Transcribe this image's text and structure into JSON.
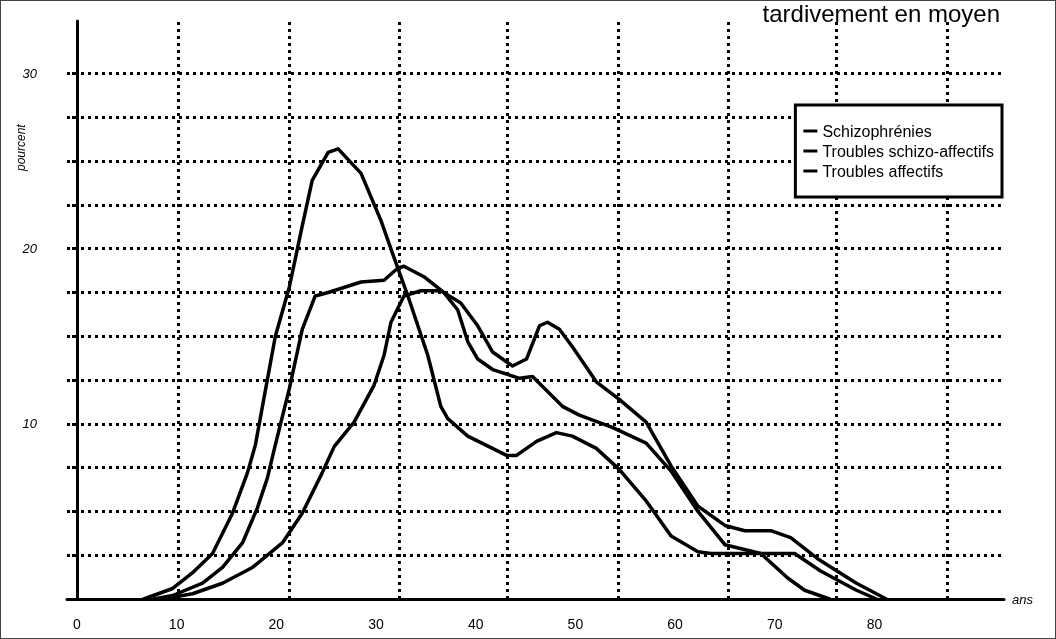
{
  "chart_data": {
    "type": "line",
    "xlabel": "ans",
    "ylabel": "pourcent",
    "annotations": [
      "tardivement en moyen"
    ],
    "xlim": [
      -1,
      93
    ],
    "xticks": [
      0,
      10,
      20,
      30,
      40,
      50,
      60,
      70,
      80
    ],
    "ylim": [
      0,
      33
    ],
    "yticks": [
      {
        "value": 2.5,
        "label": null
      },
      {
        "value": 5,
        "label": null
      },
      {
        "value": 7.5,
        "label": null
      },
      {
        "value": 10,
        "label": "10"
      },
      {
        "value": 12.5,
        "label": null
      },
      {
        "value": 15,
        "label": null
      },
      {
        "value": 17.5,
        "label": null
      },
      {
        "value": 20,
        "label": "20"
      },
      {
        "value": 22.5,
        "label": null
      },
      {
        "value": 25,
        "label": null
      },
      {
        "value": 27.5,
        "label": null
      },
      {
        "value": 30,
        "label": "30"
      }
    ],
    "grid": "y",
    "legend": "top right",
    "marker": "none",
    "line_style": "solid",
    "ref_lines": [
      {
        "axis": "x",
        "value": 10.2,
        "line_style": "dotted"
      },
      {
        "axis": "x",
        "value": 21.3,
        "line_style": "dotted"
      },
      {
        "axis": "x",
        "value": 32.3,
        "line_style": "dotted"
      },
      {
        "axis": "x",
        "value": 43.2,
        "line_style": "dotted"
      },
      {
        "axis": "x",
        "value": 54.3,
        "line_style": "dotted"
      },
      {
        "axis": "x",
        "value": 65.3,
        "line_style": "dotted"
      },
      {
        "axis": "x",
        "value": 76.2,
        "line_style": "dotted"
      },
      {
        "axis": "x",
        "value": 87.3,
        "line_style": "dotted"
      }
    ],
    "series": [
      {
        "name": "Schizophrénies",
        "color": "#000000",
        "x": [
          6.7,
          9.6,
          11.6,
          13.6,
          15.6,
          17.1,
          17.9,
          19.9,
          21.3,
          22.6,
          23.6,
          25.2,
          26.2,
          28.5,
          30.5,
          31.8,
          33.2,
          35.2,
          36.5,
          37.2,
          39.2,
          43.1,
          44.1,
          46.1,
          48.1,
          49.7,
          52.1,
          54.4,
          57.1,
          59.6,
          62.3,
          63.6,
          68.6,
          71.3,
          73.0,
          75.5
        ],
        "values": [
          0,
          0.6,
          1.5,
          2.6,
          4.9,
          7.2,
          8.8,
          15.0,
          17.8,
          21.3,
          23.9,
          25.5,
          25.7,
          24.3,
          21.6,
          19.5,
          17.3,
          13.9,
          11.0,
          10.3,
          9.3,
          8.2,
          8.2,
          9.0,
          9.5,
          9.3,
          8.6,
          7.4,
          5.6,
          3.6,
          2.7,
          2.6,
          2.6,
          1.2,
          0.5,
          0
        ]
      },
      {
        "name": "Troubles schizo-affectifs",
        "color": "#000000",
        "x": [
          7.7,
          9.6,
          12.6,
          14.6,
          16.6,
          18.1,
          19.1,
          19.9,
          21.3,
          22.6,
          23.9,
          25.2,
          28.5,
          30.8,
          32.2,
          32.8,
          34.8,
          36.8,
          38.2,
          39.2,
          40.2,
          41.7,
          44.4,
          45.7,
          48.7,
          50.4,
          53.7,
          57.1,
          59.6,
          62.3,
          65.0,
          68.6,
          72.0,
          74.6,
          78.2,
          80.2
        ],
        "values": [
          0,
          0.2,
          0.9,
          1.8,
          3.2,
          5.2,
          6.9,
          8.8,
          12.0,
          15.4,
          17.3,
          17.5,
          18.1,
          18.2,
          18.9,
          19.0,
          18.4,
          17.5,
          16.5,
          14.7,
          13.7,
          13.1,
          12.6,
          12.7,
          11.0,
          10.5,
          9.8,
          8.9,
          7.3,
          5.0,
          3.1,
          2.6,
          2.6,
          1.6,
          0.5,
          0
        ]
      },
      {
        "name": "Troubles affectifs",
        "color": "#000000",
        "x": [
          8.6,
          11.6,
          14.6,
          17.6,
          20.6,
          22.6,
          24.6,
          25.8,
          27.8,
          29.8,
          30.8,
          31.5,
          32.8,
          34.5,
          36.5,
          38.5,
          40.2,
          41.7,
          43.7,
          45.1,
          46.4,
          47.2,
          48.4,
          49.7,
          52.1,
          54.4,
          57.1,
          59.6,
          62.3,
          65.0,
          67.0,
          69.6,
          71.6,
          74.3,
          78.2,
          81.2
        ],
        "values": [
          0,
          0.3,
          0.9,
          1.8,
          3.2,
          4.9,
          7.2,
          8.7,
          10.1,
          12.2,
          13.9,
          15.8,
          17.3,
          17.6,
          17.6,
          16.9,
          15.6,
          14.1,
          13.3,
          13.7,
          15.6,
          15.8,
          15.4,
          14.4,
          12.4,
          11.4,
          10.1,
          7.6,
          5.3,
          4.2,
          3.9,
          3.9,
          3.5,
          2.3,
          0.9,
          0
        ]
      }
    ]
  }
}
